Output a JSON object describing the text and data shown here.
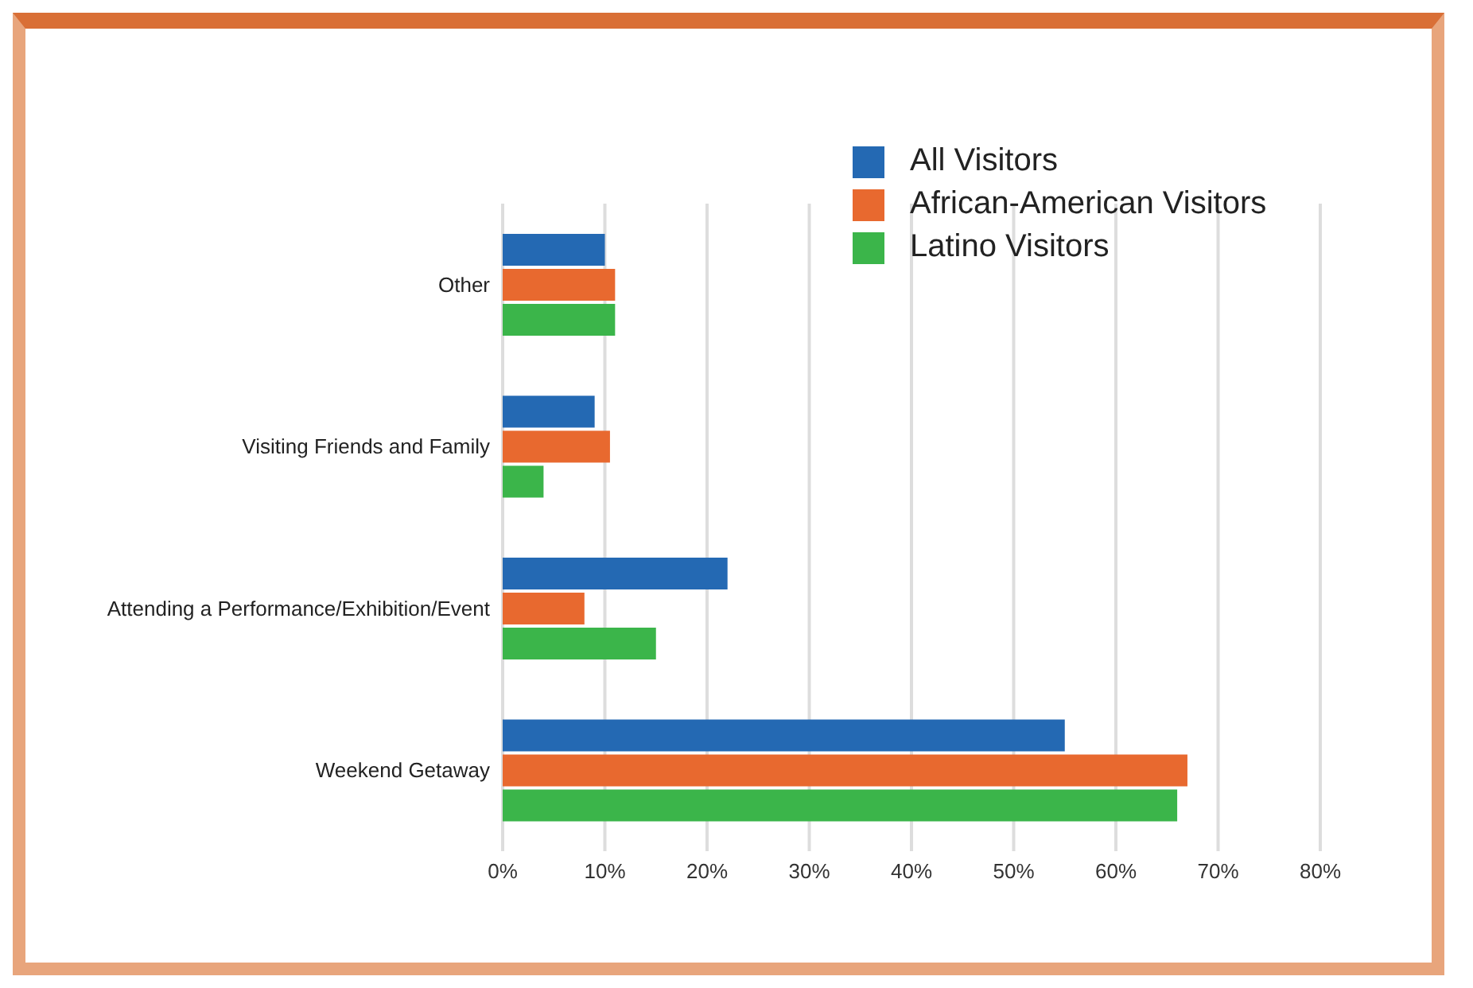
{
  "chart_data": {
    "type": "bar",
    "orientation": "horizontal",
    "categories": [
      "Other",
      "Visiting Friends and Family",
      "Attending a Performance/Exhibition/Event",
      "Weekend Getaway"
    ],
    "series": [
      {
        "name": "All Visitors",
        "color": "#2469b3",
        "values": [
          10,
          9,
          22,
          55
        ]
      },
      {
        "name": "African-American Visitors",
        "color": "#e8692f",
        "values": [
          11,
          10.5,
          8,
          67
        ]
      },
      {
        "name": "Latino Visitors",
        "color": "#3bb54a",
        "values": [
          11,
          4,
          15,
          66
        ]
      }
    ],
    "xlim": [
      0,
      80
    ],
    "xticks": [
      {
        "value": 0,
        "label": "0%"
      },
      {
        "value": 10,
        "label": "10%"
      },
      {
        "value": 20,
        "label": "20%"
      },
      {
        "value": 30,
        "label": "30%"
      },
      {
        "value": 40,
        "label": "40%"
      },
      {
        "value": 50,
        "label": "50%"
      },
      {
        "value": 60,
        "label": "60%"
      },
      {
        "value": 70,
        "label": "70%"
      },
      {
        "value": 80,
        "label": "80%"
      }
    ],
    "grid": "x",
    "legend": "top right"
  }
}
